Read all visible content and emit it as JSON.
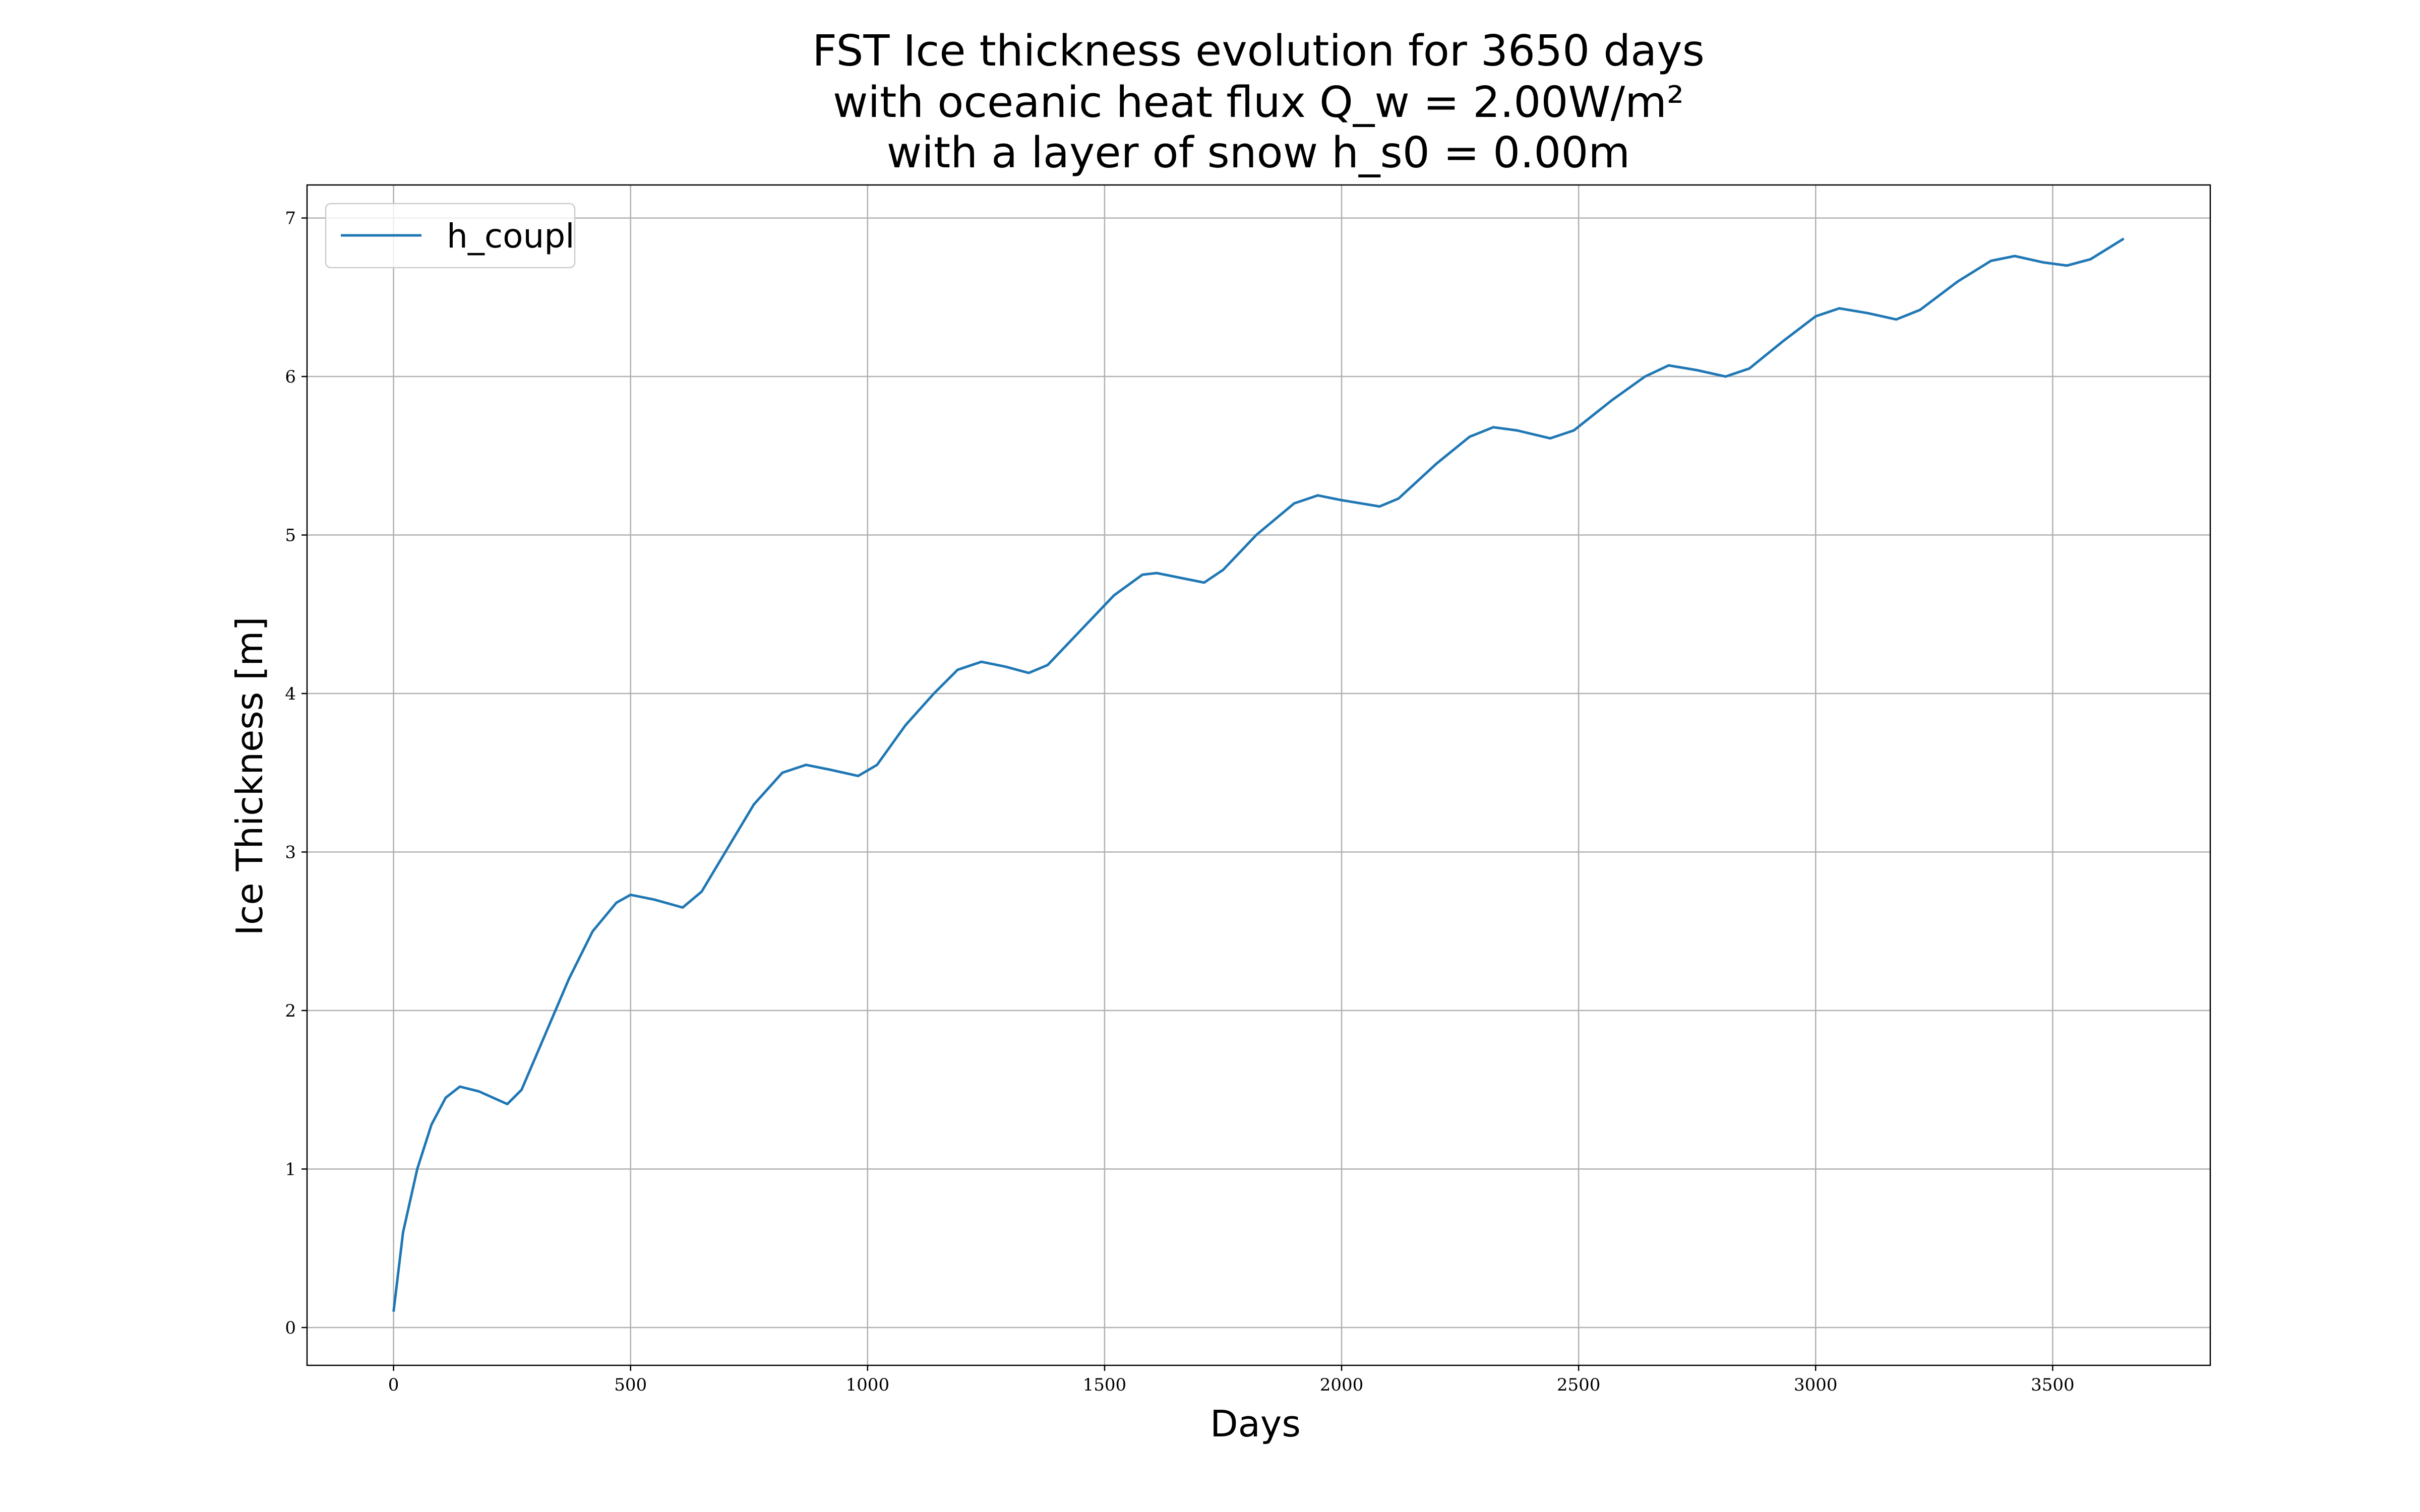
{
  "chart_data": {
    "type": "line",
    "title": [
      "FST Ice thickness evolution for 3650 days",
      "with oceanic heat flux Q_w = 2.00W/m²",
      "with a layer of snow h_s0 = 0.00m"
    ],
    "x_label": "Days",
    "y_label": "Ice Thickness [m]",
    "x": [
      0,
      20,
      50,
      80,
      110,
      140,
      180,
      240,
      270,
      320,
      370,
      420,
      470,
      500,
      550,
      610,
      650,
      700,
      760,
      820,
      870,
      920,
      980,
      1020,
      1080,
      1140,
      1190,
      1240,
      1290,
      1340,
      1380,
      1450,
      1520,
      1580,
      1610,
      1660,
      1710,
      1750,
      1820,
      1900,
      1950,
      2000,
      2080,
      2120,
      2200,
      2270,
      2320,
      2370,
      2440,
      2490,
      2570,
      2640,
      2690,
      2750,
      2810,
      2860,
      2930,
      3000,
      3050,
      3110,
      3170,
      3220,
      3300,
      3370,
      3420,
      3480,
      3530,
      3580,
      3650
    ],
    "series": [
      {
        "name": "h_coupl",
        "color": "#1f77b4",
        "values": [
          0.1,
          0.6,
          1.0,
          1.28,
          1.45,
          1.52,
          1.49,
          1.41,
          1.5,
          1.85,
          2.2,
          2.5,
          2.68,
          2.73,
          2.7,
          2.65,
          2.75,
          3.0,
          3.3,
          3.5,
          3.55,
          3.52,
          3.48,
          3.55,
          3.8,
          4.0,
          4.15,
          4.2,
          4.17,
          4.13,
          4.18,
          4.4,
          4.62,
          4.75,
          4.76,
          4.73,
          4.7,
          4.78,
          5.0,
          5.2,
          5.25,
          5.22,
          5.18,
          5.23,
          5.45,
          5.62,
          5.68,
          5.66,
          5.61,
          5.66,
          5.85,
          6.0,
          6.07,
          6.04,
          6.0,
          6.05,
          6.22,
          6.38,
          6.43,
          6.4,
          6.36,
          6.42,
          6.6,
          6.73,
          6.76,
          6.72,
          6.7,
          6.74,
          6.87
        ]
      }
    ],
    "xlim": [
      -182.5,
      3832.5
    ],
    "xticks": [
      0,
      500,
      1000,
      1500,
      2000,
      2500,
      3000,
      3500
    ],
    "ylim": [
      -0.2385,
      7.2085
    ],
    "yticks": [
      0,
      1,
      2,
      3,
      4,
      5,
      6,
      7
    ],
    "grid": true,
    "legend": "upper left"
  }
}
